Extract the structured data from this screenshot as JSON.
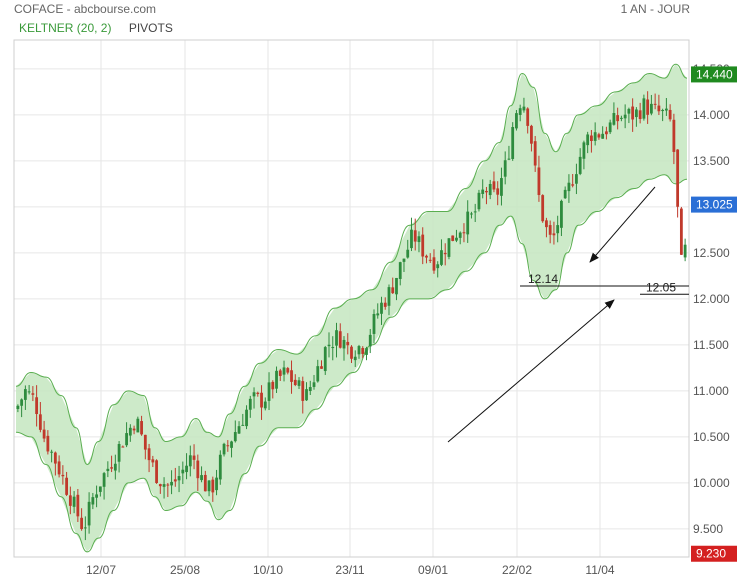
{
  "header": {
    "left": "COFACE - abcbourse.com",
    "right": "1 AN - JOUR"
  },
  "legend": {
    "keltner": "KELTNER (20, 2)",
    "pivots": "PIVOTS"
  },
  "colors": {
    "up": "#2e8b3e",
    "down": "#c0392b",
    "band_fill": "#c4e6bf",
    "band_line": "#5aae50",
    "tag_high": "#1f8a1f",
    "tag_last": "#2a6fd6",
    "tag_low": "#d42020"
  },
  "chart_data": {
    "type": "candlestick",
    "x_tick_labels": [
      "12/07",
      "25/08",
      "10/10",
      "23/11",
      "09/01",
      "22/02",
      "11/04"
    ],
    "y_tick_labels": [
      "9.500",
      "10.000",
      "10.500",
      "11.000",
      "11.500",
      "12.000",
      "12.500",
      "13.000",
      "13.500",
      "14.000",
      "14.500"
    ],
    "ylim": [
      9.2,
      14.55
    ],
    "price_tags": {
      "high": "14.440",
      "last": "13.025",
      "low": "9.230"
    },
    "annotations": [
      {
        "label": "12.14",
        "value": 12.14
      },
      {
        "label": "12.05",
        "value": 12.05
      }
    ],
    "close_path": [
      [
        0,
        10.8
      ],
      [
        5,
        11.0
      ],
      [
        10,
        10.9
      ],
      [
        15,
        10.5
      ],
      [
        22,
        10.2
      ],
      [
        30,
        9.8
      ],
      [
        36,
        9.5
      ],
      [
        42,
        9.9
      ],
      [
        50,
        10.2
      ],
      [
        58,
        10.5
      ],
      [
        64,
        10.7
      ],
      [
        70,
        10.3
      ],
      [
        76,
        10.05
      ],
      [
        82,
        9.95
      ],
      [
        88,
        10.1
      ],
      [
        94,
        10.3
      ],
      [
        100,
        10.0
      ],
      [
        104,
        9.9
      ],
      [
        110,
        10.3
      ],
      [
        118,
        10.6
      ],
      [
        126,
        10.9
      ],
      [
        132,
        10.9
      ],
      [
        138,
        11.1
      ],
      [
        144,
        11.2
      ],
      [
        150,
        11.05
      ],
      [
        155,
        10.95
      ],
      [
        160,
        11.2
      ],
      [
        166,
        11.5
      ],
      [
        172,
        11.6
      ],
      [
        178,
        11.45
      ],
      [
        186,
        11.5
      ],
      [
        194,
        11.9
      ],
      [
        200,
        12.1
      ],
      [
        206,
        12.4
      ],
      [
        212,
        12.7
      ],
      [
        218,
        12.5
      ],
      [
        224,
        12.4
      ],
      [
        230,
        12.6
      ],
      [
        238,
        12.8
      ],
      [
        244,
        12.9
      ],
      [
        250,
        13.2
      ],
      [
        256,
        13.1
      ],
      [
        262,
        13.5
      ],
      [
        266,
        14.0
      ],
      [
        270,
        14.2
      ],
      [
        274,
        13.9
      ],
      [
        278,
        13.2
      ],
      [
        282,
        12.8
      ],
      [
        286,
        12.6
      ],
      [
        290,
        12.9
      ],
      [
        295,
        13.2
      ],
      [
        300,
        13.5
      ],
      [
        306,
        13.8
      ],
      [
        312,
        13.8
      ],
      [
        318,
        13.9
      ],
      [
        324,
        14.0
      ],
      [
        330,
        14.0
      ],
      [
        335,
        14.1
      ],
      [
        340,
        14.05
      ],
      [
        346,
        14.0
      ],
      [
        350,
        13.9
      ],
      [
        352,
        13.3
      ],
      [
        354,
        12.6
      ],
      [
        356,
        12.15
      ],
      [
        358,
        12.9
      ]
    ],
    "keltner_upper": [
      [
        0,
        11.05
      ],
      [
        8,
        11.2
      ],
      [
        16,
        11.15
      ],
      [
        24,
        10.95
      ],
      [
        32,
        10.6
      ],
      [
        38,
        10.2
      ],
      [
        44,
        10.45
      ],
      [
        52,
        10.85
      ],
      [
        60,
        11.0
      ],
      [
        68,
        10.95
      ],
      [
        74,
        10.6
      ],
      [
        80,
        10.45
      ],
      [
        88,
        10.5
      ],
      [
        96,
        10.7
      ],
      [
        102,
        10.55
      ],
      [
        108,
        10.5
      ],
      [
        114,
        10.75
      ],
      [
        122,
        11.05
      ],
      [
        130,
        11.3
      ],
      [
        140,
        11.45
      ],
      [
        150,
        11.4
      ],
      [
        160,
        11.6
      ],
      [
        170,
        11.9
      ],
      [
        180,
        12.0
      ],
      [
        190,
        12.1
      ],
      [
        200,
        12.4
      ],
      [
        210,
        12.8
      ],
      [
        220,
        12.95
      ],
      [
        230,
        12.95
      ],
      [
        240,
        13.2
      ],
      [
        250,
        13.5
      ],
      [
        258,
        13.7
      ],
      [
        264,
        14.1
      ],
      [
        270,
        14.45
      ],
      [
        276,
        14.3
      ],
      [
        282,
        13.8
      ],
      [
        288,
        13.6
      ],
      [
        294,
        13.8
      ],
      [
        300,
        14.0
      ],
      [
        310,
        14.1
      ],
      [
        320,
        14.25
      ],
      [
        330,
        14.35
      ],
      [
        338,
        14.45
      ],
      [
        346,
        14.4
      ],
      [
        352,
        14.55
      ],
      [
        358,
        14.4
      ]
    ],
    "keltner_lower": [
      [
        0,
        10.55
      ],
      [
        8,
        10.5
      ],
      [
        16,
        10.2
      ],
      [
        24,
        9.85
      ],
      [
        32,
        9.45
      ],
      [
        38,
        9.25
      ],
      [
        44,
        9.4
      ],
      [
        52,
        9.7
      ],
      [
        60,
        10.0
      ],
      [
        68,
        10.05
      ],
      [
        74,
        9.85
      ],
      [
        80,
        9.7
      ],
      [
        88,
        9.75
      ],
      [
        96,
        9.9
      ],
      [
        102,
        9.8
      ],
      [
        108,
        9.6
      ],
      [
        114,
        9.7
      ],
      [
        122,
        10.1
      ],
      [
        130,
        10.4
      ],
      [
        140,
        10.6
      ],
      [
        150,
        10.6
      ],
      [
        160,
        10.8
      ],
      [
        170,
        11.05
      ],
      [
        180,
        11.2
      ],
      [
        190,
        11.5
      ],
      [
        200,
        11.8
      ],
      [
        210,
        12.0
      ],
      [
        220,
        12.0
      ],
      [
        230,
        12.1
      ],
      [
        240,
        12.3
      ],
      [
        250,
        12.5
      ],
      [
        258,
        12.8
      ],
      [
        264,
        12.9
      ],
      [
        270,
        12.6
      ],
      [
        276,
        12.2
      ],
      [
        282,
        12.0
      ],
      [
        288,
        12.1
      ],
      [
        294,
        12.5
      ],
      [
        300,
        12.8
      ],
      [
        310,
        12.95
      ],
      [
        320,
        13.1
      ],
      [
        330,
        13.2
      ],
      [
        338,
        13.3
      ],
      [
        346,
        13.35
      ],
      [
        352,
        13.25
      ],
      [
        358,
        13.3
      ]
    ]
  }
}
